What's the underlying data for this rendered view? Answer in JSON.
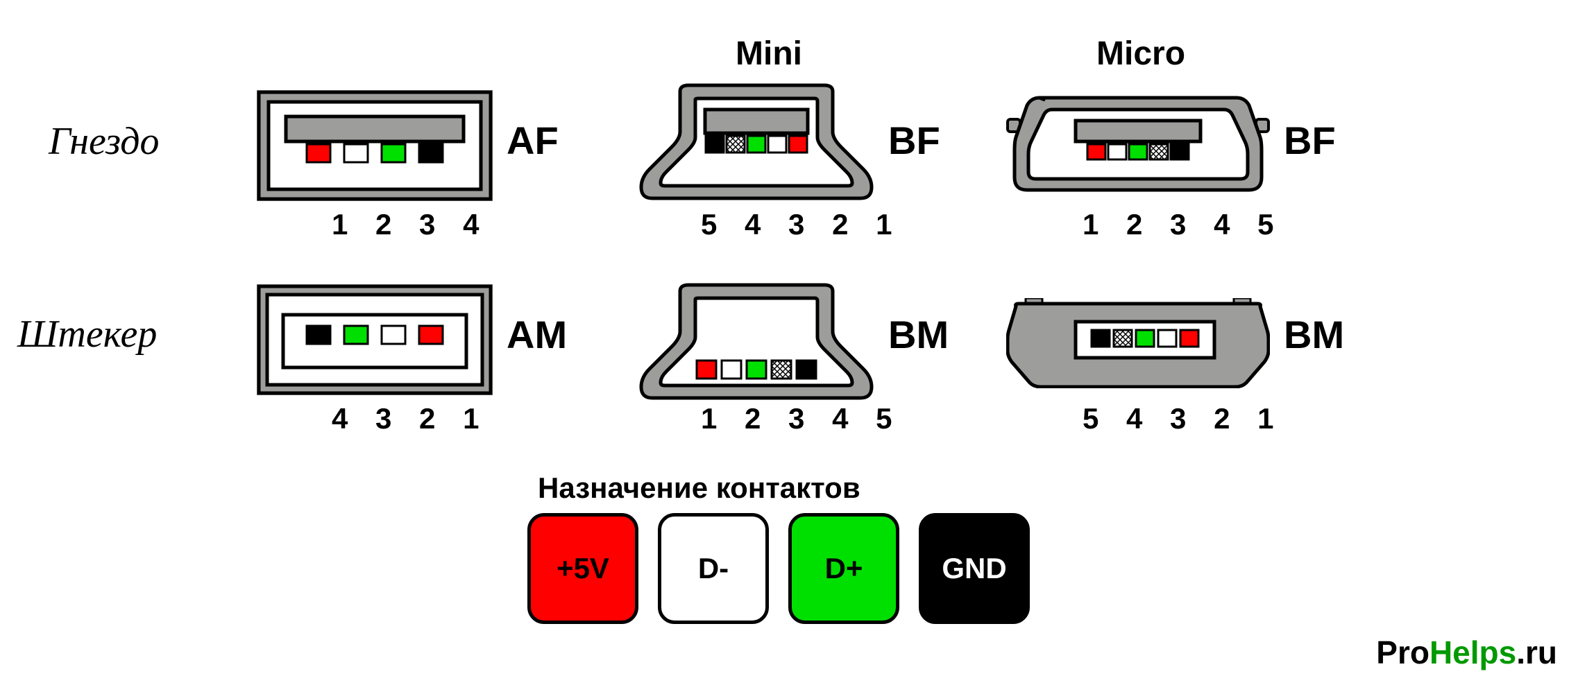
{
  "columns": {
    "mini": "Mini",
    "micro": "Micro"
  },
  "rows": {
    "socket": "Гнездо",
    "plug": "Штекер"
  },
  "colors": {
    "shell": "#9d9d9c",
    "outline": "#000000",
    "white": "#ffffff",
    "red": "#ff0000",
    "green": "#00e000",
    "black": "#000000",
    "hatch": "hatch"
  },
  "connectors": {
    "AF": {
      "label": "AF",
      "pin_text": "1 2 3 4",
      "pins": [
        "red",
        "white",
        "green",
        "black"
      ]
    },
    "AM": {
      "label": "AM",
      "pin_text": "4 3 2 1",
      "pins": [
        "black",
        "green",
        "white",
        "red"
      ]
    },
    "mini_BF": {
      "label": "BF",
      "pin_text": "5 4 3 2 1",
      "pins": [
        "black",
        "hatch",
        "green",
        "white",
        "red"
      ]
    },
    "mini_BM": {
      "label": "BM",
      "pin_text": "1 2 3 4 5",
      "pins": [
        "red",
        "white",
        "green",
        "hatch",
        "black"
      ]
    },
    "micro_BF": {
      "label": "BF",
      "pin_text": "1 2 3 4 5",
      "pins": [
        "red",
        "white",
        "green",
        "hatch",
        "black"
      ]
    },
    "micro_BM": {
      "label": "BM",
      "pin_text": "5 4 3 2 1",
      "pins": [
        "black",
        "hatch",
        "green",
        "white",
        "red"
      ]
    }
  },
  "legend": {
    "title": "Назначение контактов",
    "items": [
      {
        "label": "+5V",
        "bg": "#ff0000",
        "fg": "#000000"
      },
      {
        "label": "D-",
        "bg": "#ffffff",
        "fg": "#000000"
      },
      {
        "label": "D+",
        "bg": "#00e000",
        "fg": "#000000"
      },
      {
        "label": "GND",
        "bg": "#000000",
        "fg": "#ffffff"
      }
    ]
  },
  "watermark": {
    "pro": "Pro",
    "helps": "Helps",
    "ru": ".ru",
    "pro_color": "#000000",
    "helps_color": "#009900",
    "ru_color": "#000000"
  },
  "style": {
    "stroke_w": 5,
    "pin_w": 34,
    "pin_h": 26,
    "pin_gap": 8,
    "pin5_w": 30,
    "pin5_gap": 4
  }
}
